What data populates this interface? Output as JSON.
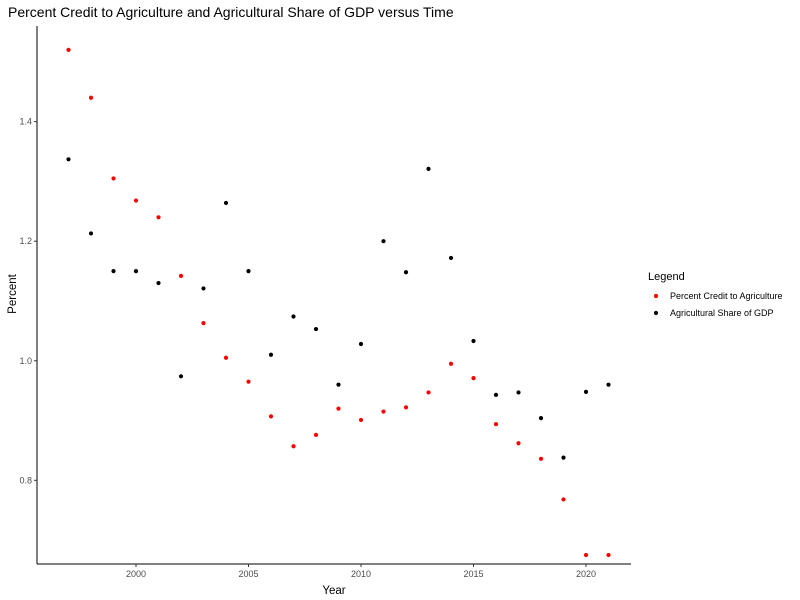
{
  "chart_data": {
    "type": "scatter",
    "title": "Percent Credit to Agriculture and Agricultural Share of GDP versus Time",
    "xlabel": "Year",
    "ylabel": "Percent",
    "xlim": [
      1995.6,
      2022.0
    ],
    "ylim": [
      0.66,
      1.56
    ],
    "x_ticks": [
      2000,
      2005,
      2010,
      2015,
      2020
    ],
    "y_ticks": [
      0.8,
      1.0,
      1.2,
      1.4
    ],
    "grid": false,
    "legend": {
      "title": "Legend",
      "placement": "right"
    },
    "series": [
      {
        "name": "Percent Credit to Agriculture",
        "color": "#ff0000",
        "x": [
          1997,
          1998,
          1999,
          2000,
          2001,
          2002,
          2003,
          2004,
          2005,
          2006,
          2007,
          2008,
          2009,
          2010,
          2011,
          2012,
          2013,
          2014,
          2015,
          2016,
          2017,
          2018,
          2019,
          2020,
          2021
        ],
        "y": [
          1.52,
          1.44,
          1.305,
          1.268,
          1.24,
          1.142,
          1.063,
          1.005,
          0.965,
          0.907,
          0.857,
          0.876,
          0.92,
          0.901,
          0.915,
          0.922,
          0.947,
          0.995,
          0.971,
          0.894,
          0.862,
          0.836,
          0.768,
          0.675,
          0.675
        ]
      },
      {
        "name": "Agricultural Share of GDP",
        "color": "#000000",
        "x": [
          1997,
          1998,
          1999,
          2000,
          2001,
          2002,
          2003,
          2004,
          2005,
          2006,
          2007,
          2008,
          2009,
          2010,
          2011,
          2012,
          2013,
          2014,
          2015,
          2016,
          2017,
          2018,
          2019,
          2020,
          2021
        ],
        "y": [
          1.337,
          1.213,
          1.15,
          1.15,
          1.13,
          0.974,
          1.121,
          1.264,
          1.15,
          1.01,
          1.074,
          1.053,
          0.96,
          1.028,
          1.2,
          1.148,
          1.321,
          1.172,
          1.033,
          0.943,
          0.947,
          0.904,
          0.838,
          0.948,
          0.96
        ]
      }
    ]
  }
}
